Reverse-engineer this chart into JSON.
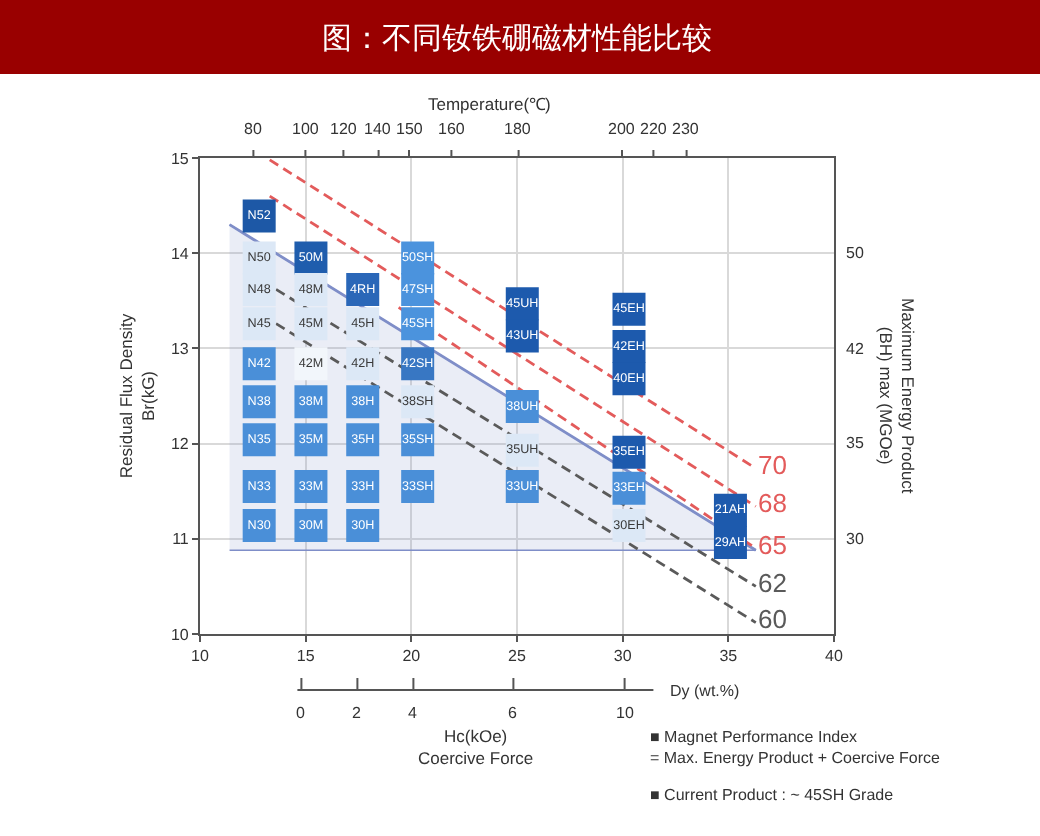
{
  "chart_data": {
    "type": "scatter",
    "title": "图：不同钕铁硼磁材性能比较",
    "xlabel": "Hc(kOe)\nCoercive Force",
    "ylabel": "Residual Flux Density\nBr(kG)",
    "y2label": "Maximum Energy Product\n(BH) max (MGOe)",
    "x2label": "Temperature(℃)",
    "xlim": [
      10,
      40
    ],
    "xticks": [
      10,
      15,
      20,
      25,
      30,
      35,
      40
    ],
    "ylim": [
      10,
      15
    ],
    "yticks": [
      10,
      11,
      12,
      13,
      14,
      15
    ],
    "grid": true,
    "marker": "square",
    "annotations": [
      "80",
      "100",
      "120",
      "140",
      "150",
      "160",
      "180",
      "200",
      "220",
      "230",
      "30",
      "35",
      "42",
      "50",
      "0",
      "2",
      "4",
      "6",
      "10",
      "Dy (wt.%)",
      "■ Magnet Performance Index\n= Max. Energy Product + Coercive Force",
      "■ Current Product : ~ 45SH Grade"
    ],
    "series": [
      {
        "type": "line",
        "color": "#7f8ec8",
        "line_style": "solid",
        "marker": "none",
        "x": [
          11.4,
          36.3
        ],
        "values": [
          14.3,
          10.88
        ],
        "lower": [
          10.88,
          10.88
        ],
        "upper": [
          14.3,
          10.88
        ]
      },
      {
        "type": "line",
        "name": "70",
        "color": "#e35b5b",
        "line_style": "dashed",
        "marker": "none",
        "x": [
          13.3,
          36.3
        ],
        "values": [
          14.98,
          11.74
        ]
      },
      {
        "type": "line",
        "name": "68",
        "color": "#e35b5b",
        "line_style": "dashed",
        "marker": "none",
        "x": [
          13.3,
          36.3
        ],
        "values": [
          14.6,
          11.34
        ]
      },
      {
        "type": "line",
        "name": "65",
        "color": "#e35b5b",
        "line_style": "dashed",
        "marker": "none",
        "x": [
          19.4,
          36.3
        ],
        "values": [
          13.43,
          10.9
        ]
      },
      {
        "type": "line",
        "name": "62",
        "color": "#5a5a5a",
        "line_style": "dashed",
        "marker": "none",
        "x": [
          13.6,
          36.3
        ],
        "values": [
          13.62,
          10.5
        ]
      },
      {
        "type": "line",
        "name": "60",
        "color": "#5a5a5a",
        "line_style": "dashed",
        "marker": "none",
        "x": [
          13.6,
          36.3
        ],
        "values": [
          13.26,
          10.12
        ]
      },
      {
        "name": "N52",
        "color": "#1d58a6",
        "x": [
          12.8
        ],
        "values": [
          14.39
        ]
      },
      {
        "name": "N50",
        "color": "#dce8f6",
        "x": [
          12.8
        ],
        "values": [
          13.95
        ]
      },
      {
        "name": "N48",
        "color": "#dce8f6",
        "x": [
          12.8
        ],
        "values": [
          13.62
        ]
      },
      {
        "name": "N45",
        "color": "#dce8f6",
        "x": [
          12.8
        ],
        "values": [
          13.26
        ]
      },
      {
        "name": "N42",
        "color": "#4a8fd8",
        "x": [
          12.8
        ],
        "values": [
          12.84
        ]
      },
      {
        "name": "N38",
        "color": "#4a8fd8",
        "x": [
          12.8
        ],
        "values": [
          12.44
        ]
      },
      {
        "name": "N35",
        "color": "#4a8fd8",
        "x": [
          12.8
        ],
        "values": [
          12.04
        ]
      },
      {
        "name": "N33",
        "color": "#4a8fd8",
        "x": [
          12.8
        ],
        "values": [
          11.55
        ]
      },
      {
        "name": "N30",
        "color": "#4a8fd8",
        "x": [
          12.8
        ],
        "values": [
          11.14
        ]
      },
      {
        "name": "50M",
        "color": "#1f5dad",
        "x": [
          15.25
        ],
        "values": [
          13.95
        ]
      },
      {
        "name": "48M",
        "color": "#dce8f6",
        "x": [
          15.25
        ],
        "values": [
          13.62
        ]
      },
      {
        "name": "45M",
        "color": "#dce8f6",
        "x": [
          15.25
        ],
        "values": [
          13.26
        ]
      },
      {
        "name": "42M",
        "color": "#f2f6fb",
        "x": [
          15.25
        ],
        "values": [
          12.84
        ]
      },
      {
        "name": "38M",
        "color": "#4a8fd8",
        "x": [
          15.25
        ],
        "values": [
          12.44
        ]
      },
      {
        "name": "35M",
        "color": "#4a8fd8",
        "x": [
          15.25
        ],
        "values": [
          12.04
        ]
      },
      {
        "name": "33M",
        "color": "#4a8fd8",
        "x": [
          15.25
        ],
        "values": [
          11.55
        ]
      },
      {
        "name": "30M",
        "color": "#4a8fd8",
        "x": [
          15.25
        ],
        "values": [
          11.14
        ]
      },
      {
        "name": "4RH",
        "color": "#2a67b8",
        "x": [
          17.7
        ],
        "values": [
          13.62
        ]
      },
      {
        "name": "45H",
        "color": "#dce8f6",
        "x": [
          17.7
        ],
        "values": [
          13.26
        ]
      },
      {
        "name": "42H",
        "color": "#dce8f6",
        "x": [
          17.7
        ],
        "values": [
          12.84
        ]
      },
      {
        "name": "38H",
        "color": "#4a8fd8",
        "x": [
          17.7
        ],
        "values": [
          12.44
        ]
      },
      {
        "name": "35H",
        "color": "#4a8fd8",
        "x": [
          17.7
        ],
        "values": [
          12.04
        ]
      },
      {
        "name": "33H",
        "color": "#4a8fd8",
        "x": [
          17.7
        ],
        "values": [
          11.55
        ]
      },
      {
        "name": "30H",
        "color": "#4a8fd8",
        "x": [
          17.7
        ],
        "values": [
          11.14
        ]
      },
      {
        "name": "50SH",
        "color": "#4b93dd",
        "x": [
          20.3
        ],
        "values": [
          13.95
        ]
      },
      {
        "name": "47SH",
        "color": "#4b93dd",
        "x": [
          20.3
        ],
        "values": [
          13.62
        ]
      },
      {
        "name": "45SH",
        "color": "#4b93dd",
        "x": [
          20.3
        ],
        "values": [
          13.26
        ]
      },
      {
        "name": "42SH",
        "color": "#3877c3",
        "x": [
          20.3
        ],
        "values": [
          12.84
        ]
      },
      {
        "name": "38SH",
        "color": "#dce8f6",
        "x": [
          20.3
        ],
        "values": [
          12.44
        ]
      },
      {
        "name": "35SH",
        "color": "#4a8fd8",
        "x": [
          20.3
        ],
        "values": [
          12.04
        ]
      },
      {
        "name": "33SH",
        "color": "#4a8fd8",
        "x": [
          20.3
        ],
        "values": [
          11.55
        ]
      },
      {
        "name": "45UH",
        "color": "#1d5aad",
        "x": [
          25.25
        ],
        "values": [
          13.47
        ]
      },
      {
        "name": "43UH",
        "color": "#1d5aad",
        "x": [
          25.25
        ],
        "values": [
          13.13
        ]
      },
      {
        "name": "38UH",
        "color": "#4a8fd8",
        "x": [
          25.25
        ],
        "values": [
          12.39
        ]
      },
      {
        "name": "35UH",
        "color": "#dce8f6",
        "x": [
          25.25
        ],
        "values": [
          11.93
        ]
      },
      {
        "name": "33UH",
        "color": "#4a8fd8",
        "x": [
          25.25
        ],
        "values": [
          11.55
        ]
      },
      {
        "name": "45EH",
        "color": "#1d5aad",
        "x": [
          30.3
        ],
        "values": [
          13.41
        ]
      },
      {
        "name": "42EH",
        "color": "#1d5aad",
        "x": [
          30.3
        ],
        "values": [
          13.02
        ]
      },
      {
        "name": "40EH",
        "color": "#1d5aad",
        "x": [
          30.3
        ],
        "values": [
          12.68
        ]
      },
      {
        "name": "35EH",
        "color": "#1d5aad",
        "x": [
          30.3
        ],
        "values": [
          11.91
        ]
      },
      {
        "name": "33EH",
        "color": "#4a8fd8",
        "x": [
          30.3
        ],
        "values": [
          11.53
        ]
      },
      {
        "name": "30EH",
        "color": "#dce8f6",
        "x": [
          30.3
        ],
        "values": [
          11.14
        ]
      },
      {
        "name": "21AH",
        "color": "#1d5aad",
        "x": [
          35.1
        ],
        "values": [
          11.3
        ]
      },
      {
        "name": "29AH",
        "color": "#1d5aad",
        "x": [
          35.1
        ],
        "values": [
          10.96
        ]
      }
    ]
  }
}
